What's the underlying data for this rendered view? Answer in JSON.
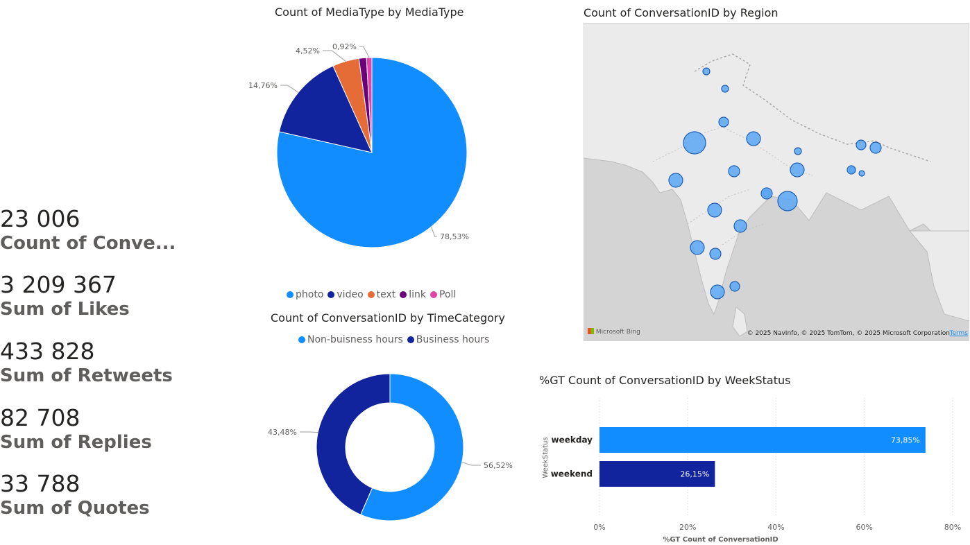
{
  "cards": [
    {
      "value": "23 006",
      "label": "Count of Conve..."
    },
    {
      "value": "3 209 367",
      "label": "Sum of Likes"
    },
    {
      "value": "433 828",
      "label": "Sum of Retweets"
    },
    {
      "value": "82 708",
      "label": "Sum of Replies"
    },
    {
      "value": "33 788",
      "label": "Sum of Quotes"
    }
  ],
  "colors": {
    "photo": "#118DFF",
    "video": "#12239E",
    "text": "#E66C37",
    "link": "#6B007B",
    "poll": "#E044A7",
    "map_bg": "#d4d4d4",
    "land": "#e8e8e8",
    "bubble": "#5aa7f5"
  },
  "chart_data": [
    {
      "type": "pie",
      "title": "Count of MediaType by MediaType",
      "categories": [
        "photo",
        "video",
        "text",
        "link",
        "Poll"
      ],
      "values": [
        78.53,
        14.76,
        4.52,
        1.27,
        0.92
      ],
      "data_labels": [
        "78,53%",
        "14,76%",
        "4,52%",
        "",
        "0,92%"
      ],
      "colors": [
        "#118DFF",
        "#12239E",
        "#E66C37",
        "#6B007B",
        "#E044A7"
      ],
      "legend_position": "bottom"
    },
    {
      "type": "pie",
      "subtype": "donut",
      "title": "Count of ConversationID by TimeCategory",
      "categories": [
        "Non-buisness hours",
        "Business hours"
      ],
      "values": [
        56.52,
        43.48
      ],
      "data_labels": [
        "56,52%",
        "43,48%"
      ],
      "colors": [
        "#118DFF",
        "#12239E"
      ],
      "legend_position": "top"
    },
    {
      "type": "bar",
      "orientation": "horizontal",
      "title": "%GT Count of ConversationID by WeekStatus",
      "categories": [
        "weekday",
        "weekend"
      ],
      "values": [
        73.85,
        26.15
      ],
      "data_labels": [
        "73,85%",
        "26,15%"
      ],
      "colors": [
        "#118DFF",
        "#12239E"
      ],
      "xlabel": "%GT Count of ConversationID",
      "ylabel": "WeekStatus",
      "xlim": [
        0,
        80
      ],
      "xticks": [
        "0%",
        "20%",
        "40%",
        "60%",
        "80%"
      ],
      "grid": true
    }
  ],
  "map": {
    "title": "Count of ConversationID by Region",
    "attribution": "© 2025 NavInfo, © 2025 TomTom, © 2025 Microsoft Corporation",
    "terms": "Terms",
    "logo": "Microsoft Bing",
    "bubble_sizes": [
      5,
      5,
      7,
      16,
      10,
      5,
      8,
      10,
      10,
      5,
      7,
      8,
      14,
      10,
      9,
      10,
      8,
      10,
      7,
      4,
      4,
      6,
      8
    ]
  }
}
